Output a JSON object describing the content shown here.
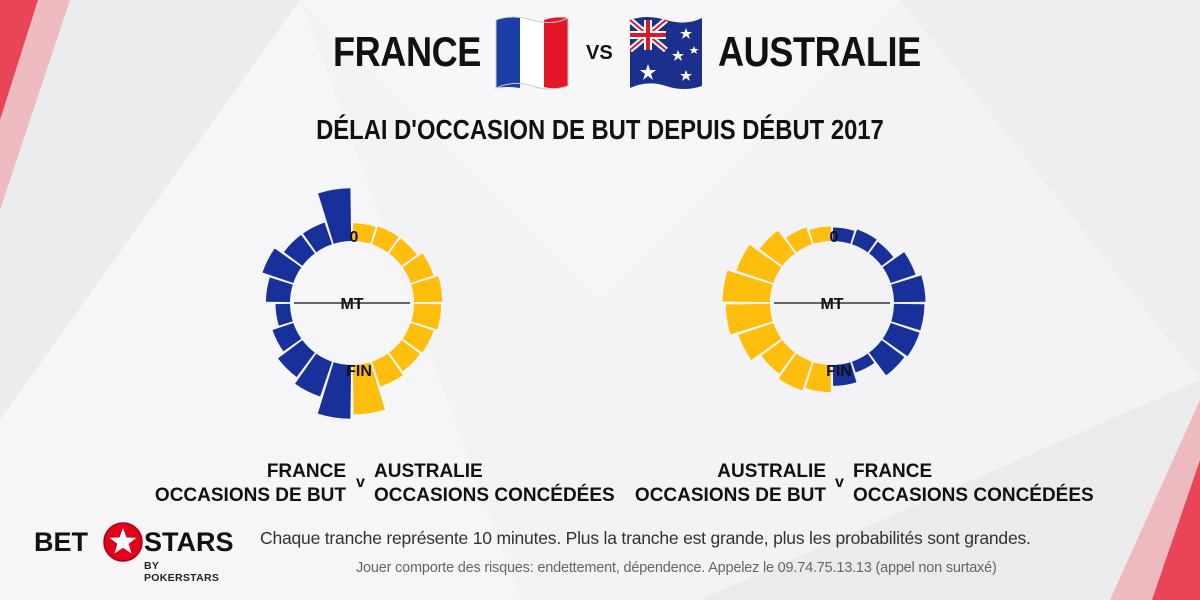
{
  "header": {
    "team_left": "FRANCE",
    "vs": "VS",
    "team_right": "AUSTRALIE",
    "flag_left_icon": "france-flag-icon",
    "flag_right_icon": "australia-flag-icon"
  },
  "colors": {
    "blue": "#17309a",
    "yellow": "#ffbe0b",
    "red_accent": "#e2001a"
  },
  "chart_data": [
    {
      "type": "radial-bar",
      "title": "DÉLAI D'OCCASION DE BUT DEPUIS DÉBUT 2017",
      "segment_minutes": 10,
      "labels": {
        "start": "0",
        "half": "MT",
        "end": "FIN"
      },
      "series": [
        {
          "values": [
            45,
            17,
            17,
            26,
            18,
            9,
            16,
            24,
            30,
            46
          ],
          "color": "#17309a"
        },
        {
          "values": [
            12,
            13,
            13,
            18,
            22,
            21,
            18,
            17,
            20,
            42
          ],
          "color": "#ffbe0b"
        }
      ],
      "caption_left": [
        "FRANCE",
        "OCCASIONS DE BUT"
      ],
      "caption_v": "v",
      "caption_right": [
        "AUSTRALIE",
        "OCCASIONS CONCÉDÉES"
      ]
    },
    {
      "type": "radial-bar",
      "segment_minutes": 10,
      "labels": {
        "start": "0",
        "half": "MT",
        "end": "FIN"
      },
      "series": [
        {
          "values": [
            9,
            12,
            22,
            32,
            40,
            37,
            30,
            20,
            24,
            21
          ],
          "color": "#ffbe0b"
        },
        {
          "values": [
            8,
            10,
            9,
            20,
            25,
            24,
            24,
            22,
            6,
            15
          ],
          "color": "#17309a"
        }
      ],
      "caption_left": [
        "AUSTRALIE",
        "OCCASIONS DE BUT"
      ],
      "caption_v": "v",
      "caption_right": [
        "FRANCE",
        "OCCASIONS CONCÉDÉES"
      ]
    }
  ],
  "footer": {
    "note": "Chaque tranche représente 10 minutes. Plus la tranche est grande, plus les probabilités sont grandes.",
    "disclaimer": "Jouer comporte des risques: endettement, dépendence. Appelez le 09.74.75.13.13 (appel non surtaxé)",
    "logo_bet": "BET",
    "logo_stars": "STARS",
    "logo_by": "BY POKERSTARS",
    "logo_icon": "pokerstars-spade-star-icon"
  }
}
